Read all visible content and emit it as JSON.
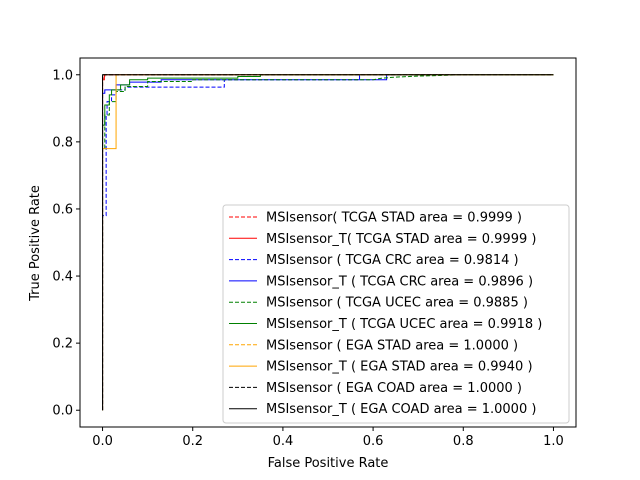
{
  "chart_data": {
    "type": "line",
    "title": "",
    "xlabel": "False Positive Rate",
    "ylabel": "True Positive Rate",
    "xlim": [
      -0.05,
      1.05
    ],
    "ylim": [
      -0.05,
      1.05
    ],
    "xticks": [
      "0.0",
      "0.2",
      "0.4",
      "0.6",
      "0.8",
      "1.0"
    ],
    "yticks": [
      "0.0",
      "0.2",
      "0.4",
      "0.6",
      "0.8",
      "1.0"
    ],
    "grid": false,
    "legend_position": "lower-right",
    "series": [
      {
        "name": "MSIsensor( TCGA STAD area = 0.9999 )",
        "color": "#ff0000",
        "dash": "dashed",
        "x": [
          0,
          0,
          0.005,
          0.005,
          1
        ],
        "y": [
          0,
          0.99,
          0.99,
          1.0,
          1.0
        ]
      },
      {
        "name": "MSIsensor_T( TCGA STAD area = 0.9999 )",
        "color": "#ff0000",
        "dash": "solid",
        "x": [
          0,
          0,
          0.004,
          0.004,
          1
        ],
        "y": [
          0,
          0.985,
          0.985,
          1.0,
          1.0
        ]
      },
      {
        "name": "MSIsensor ( TCGA CRC area = 0.9814 )",
        "color": "#0000ff",
        "dash": "dashed",
        "x": [
          0,
          0,
          0.008,
          0.008,
          0.01,
          0.01,
          0.02,
          0.02,
          0.03,
          0.03,
          0.05,
          0.05,
          0.27,
          0.27,
          0.57,
          0.57,
          1
        ],
        "y": [
          0,
          0.58,
          0.58,
          0.88,
          0.88,
          0.92,
          0.92,
          0.94,
          0.94,
          0.955,
          0.955,
          0.963,
          0.963,
          0.985,
          0.985,
          1.0,
          1.0
        ]
      },
      {
        "name": "MSIsensor_T ( TCGA CRC area = 0.9896 )",
        "color": "#0000ff",
        "dash": "solid",
        "x": [
          0,
          0,
          0.005,
          0.005,
          0.03,
          0.03,
          0.06,
          0.06,
          0.13,
          0.13,
          0.63,
          0.63,
          1
        ],
        "y": [
          0,
          0.945,
          0.945,
          0.955,
          0.955,
          0.97,
          0.97,
          0.978,
          0.978,
          0.985,
          0.985,
          1.0,
          1.0
        ]
      },
      {
        "name": "MSIsensor ( TCGA UCEC area = 0.9885 )",
        "color": "#008000",
        "dash": "dashed",
        "x": [
          0,
          0,
          0.005,
          0.005,
          0.015,
          0.015,
          0.03,
          0.03,
          0.05,
          0.05,
          0.1,
          0.1,
          0.2,
          0.2,
          0.6,
          0.62,
          0.65,
          0.7,
          0.75,
          0.8,
          1
        ],
        "y": [
          0,
          0.78,
          0.78,
          0.88,
          0.88,
          0.92,
          0.92,
          0.95,
          0.95,
          0.965,
          0.965,
          0.98,
          0.98,
          0.985,
          0.985,
          0.99,
          0.993,
          0.996,
          0.998,
          1.0,
          1.0
        ]
      },
      {
        "name": "MSIsensor_T ( TCGA UCEC area = 0.9918 )",
        "color": "#008000",
        "dash": "solid",
        "x": [
          0,
          0,
          0.005,
          0.005,
          0.015,
          0.015,
          0.02,
          0.02,
          0.04,
          0.04,
          0.06,
          0.06,
          0.1,
          0.1,
          0.3,
          0.3,
          0.35,
          0.35,
          1
        ],
        "y": [
          0,
          0.85,
          0.85,
          0.91,
          0.91,
          0.94,
          0.94,
          0.955,
          0.955,
          0.97,
          0.97,
          0.985,
          0.985,
          0.99,
          0.99,
          0.995,
          0.995,
          1.0,
          1.0
        ]
      },
      {
        "name": "MSIsensor ( EGA STAD area = 1.0000 )",
        "color": "#ffa500",
        "dash": "dashed",
        "x": [
          0,
          0,
          1
        ],
        "y": [
          0,
          1.0,
          1.0
        ]
      },
      {
        "name": "MSIsensor_T ( EGA STAD area = 0.9940 )",
        "color": "#ffa500",
        "dash": "solid",
        "x": [
          0,
          0,
          0.015,
          0.015,
          0.03,
          0.03,
          1
        ],
        "y": [
          0,
          0.78,
          0.78,
          0.78,
          0.78,
          1.0,
          1.0
        ]
      },
      {
        "name": "MSIsensor ( EGA COAD area = 1.0000 )",
        "color": "#000000",
        "dash": "dashed",
        "x": [
          0,
          0,
          1
        ],
        "y": [
          0,
          1.0,
          1.0
        ]
      },
      {
        "name": "MSIsensor_T ( EGA COAD area = 1.0000 )",
        "color": "#000000",
        "dash": "solid",
        "x": [
          0,
          0,
          1
        ],
        "y": [
          0,
          1.0,
          1.0
        ]
      }
    ]
  }
}
